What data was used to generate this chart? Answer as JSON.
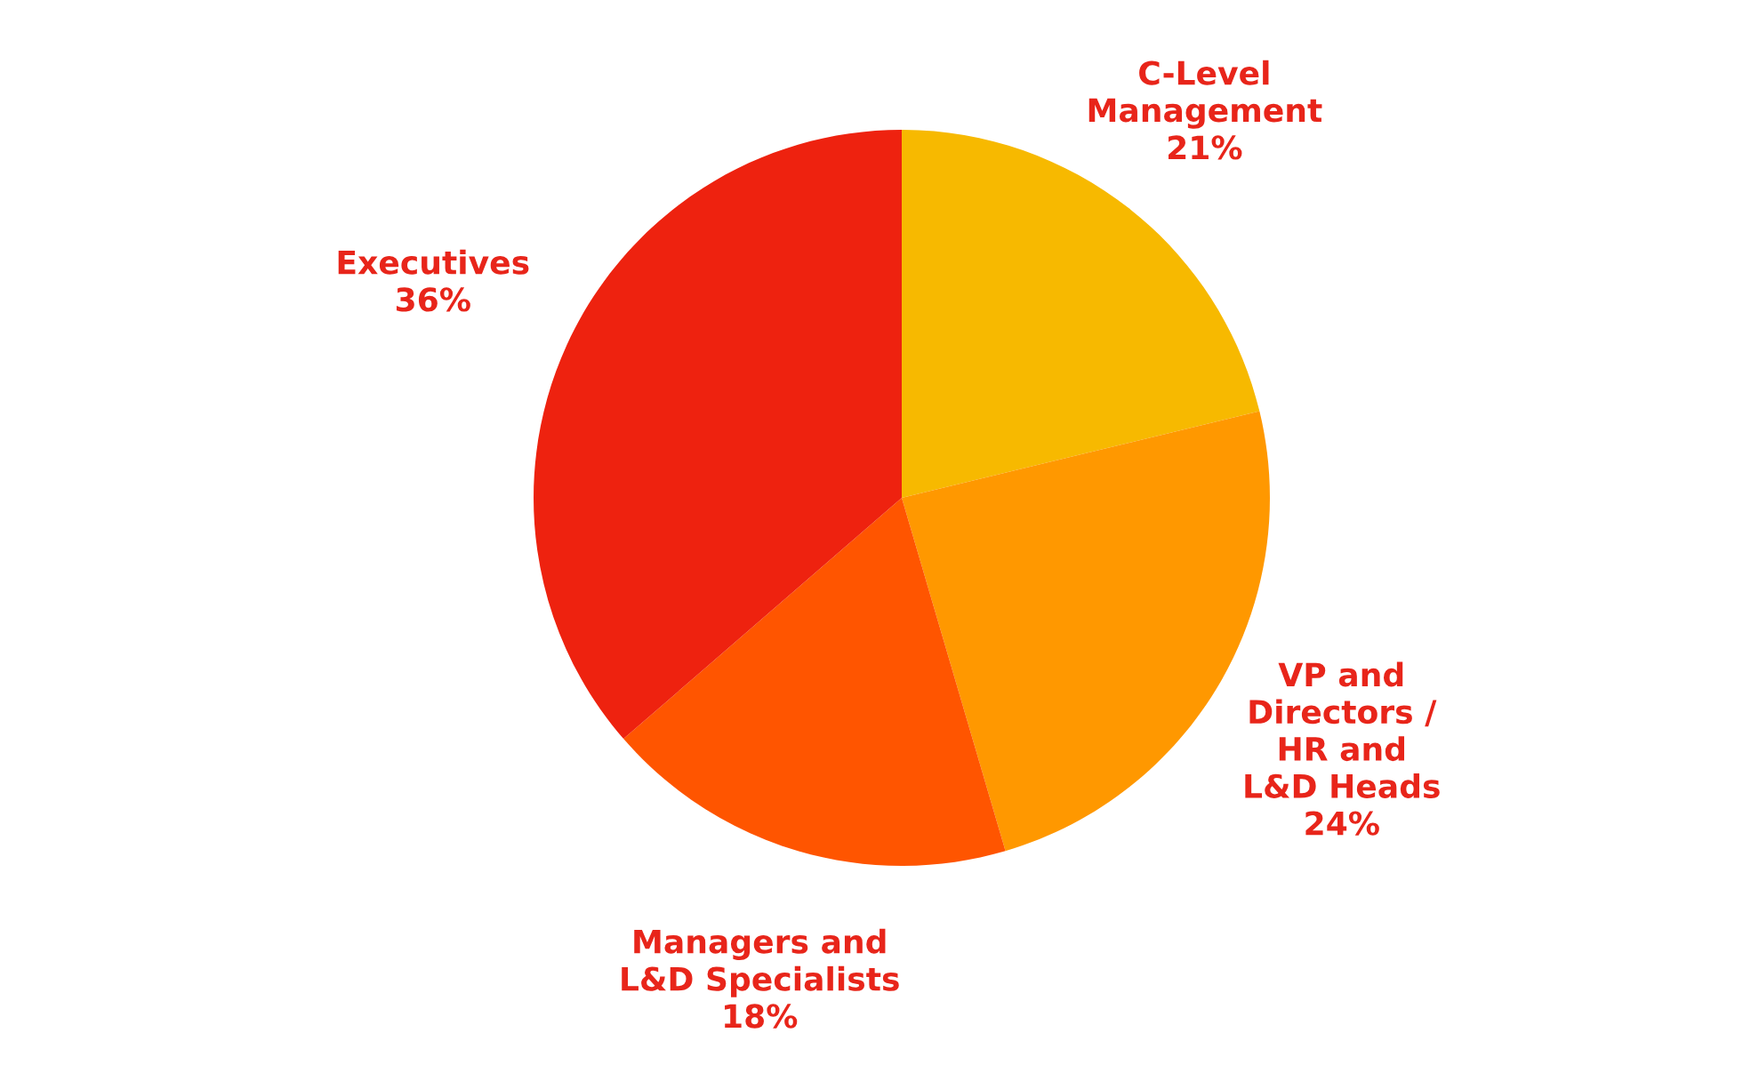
{
  "chart_data": {
    "type": "pie",
    "categories": [
      "C-Level\nManagement",
      "VP and\nDirectors /\nHR and\nL&D Heads",
      "Managers and\nL&D Specialists",
      "Executives"
    ],
    "values": [
      21,
      24,
      18,
      36
    ],
    "colors": [
      "#f7b900",
      "#ff9800",
      "#ff5500",
      "#ee220f"
    ],
    "value_labels": [
      "21%",
      "24%",
      "18%",
      "36%"
    ]
  }
}
